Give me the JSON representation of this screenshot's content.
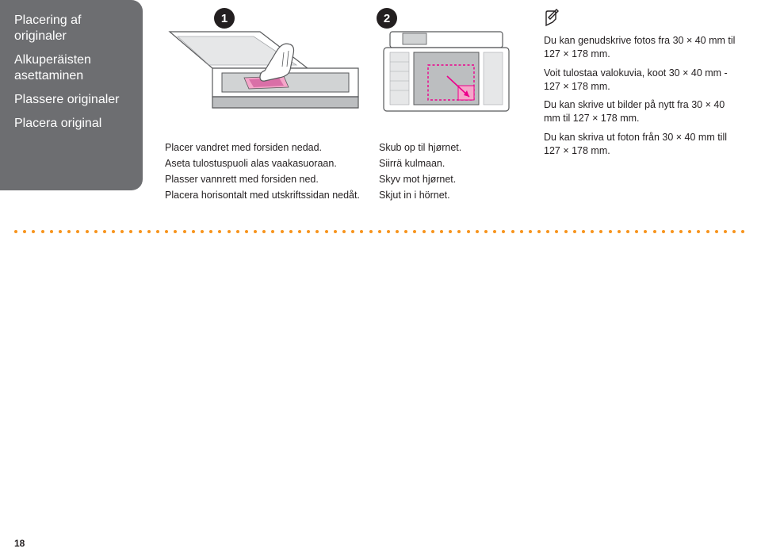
{
  "sidebar": {
    "titles": [
      "Placering af originaler",
      "Alkuperäisten asettaminen",
      "Plassere originaler",
      "Placera original"
    ]
  },
  "steps": {
    "one": "1",
    "two": "2"
  },
  "captions1": [
    "Placer vandret med forsiden nedad.",
    "Aseta tulostuspuoli alas vaakasuoraan.",
    "Plasser vannrett med forsiden ned.",
    "Placera horisontalt med utskriftssidan nedåt."
  ],
  "captions2": [
    "Skub op til hjørnet.",
    "Siirrä kulmaan.",
    "Skyv mot hjørnet.",
    "Skjut in i hörnet."
  ],
  "notes": [
    "Du kan genudskrive fotos fra 30 × 40 mm til 127 × 178 mm.",
    "Voit tulostaa valokuvia, koot 30 × 40 mm - 127 × 178 mm.",
    "Du kan skrive ut bilder på nytt fra 30 × 40 mm til 127 × 178 mm.",
    "Du kan skriva ut foton från 30 × 40 mm till 127 × 178 mm."
  ],
  "page_number": "18",
  "colors": {
    "sidebar_bg": "#6d6e71",
    "badge_bg": "#231f20",
    "dot": "#f7941d",
    "magenta": "#ec008c",
    "gray_line": "#58595b",
    "light_gray": "#bcbec0",
    "mid_gray": "#a7a9ac"
  }
}
